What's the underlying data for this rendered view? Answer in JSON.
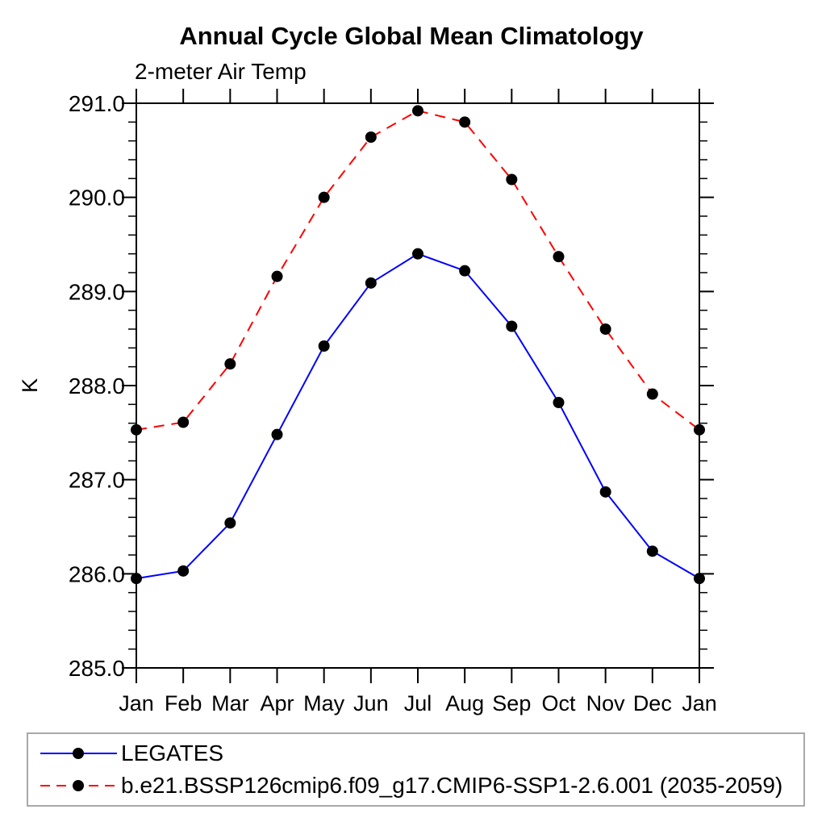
{
  "chart_data": {
    "type": "line",
    "title": "Annual Cycle Global Mean Climatology",
    "subtitle": "2-meter Air Temp",
    "ylabel": "K",
    "xlabel": "",
    "ylim": [
      285.0,
      291.0
    ],
    "ytick_interval": 1.0,
    "yminor_interval": 0.2,
    "ytick_labels": [
      "285.0",
      "286.0",
      "287.0",
      "288.0",
      "289.0",
      "290.0",
      "291.0"
    ],
    "x": [
      "Jan",
      "Feb",
      "Mar",
      "Apr",
      "May",
      "Jun",
      "Jul",
      "Aug",
      "Sep",
      "Oct",
      "Nov",
      "Dec",
      "Jan"
    ],
    "grid": false,
    "legend_position": "bottom-left",
    "marker": "filled-circle",
    "marker_color": "#000000",
    "series": [
      {
        "name": "LEGATES",
        "color": "#0000ff",
        "style": "solid",
        "values": [
          285.95,
          286.03,
          286.54,
          287.48,
          288.42,
          289.09,
          289.4,
          289.22,
          288.63,
          287.82,
          286.87,
          286.24,
          285.95
        ]
      },
      {
        "name": "b.e21.BSSP126cmip6.f09_g17.CMIP6-SSP1-2.6.001 (2035-2059)",
        "color": "#ff0000",
        "style": "dashed",
        "values": [
          287.53,
          287.61,
          288.23,
          289.16,
          290.0,
          290.64,
          290.92,
          290.8,
          290.19,
          289.37,
          288.6,
          287.91,
          287.53
        ]
      }
    ],
    "colors": {
      "axis": "#000000",
      "legend_border": "#a9a9a9"
    }
  }
}
